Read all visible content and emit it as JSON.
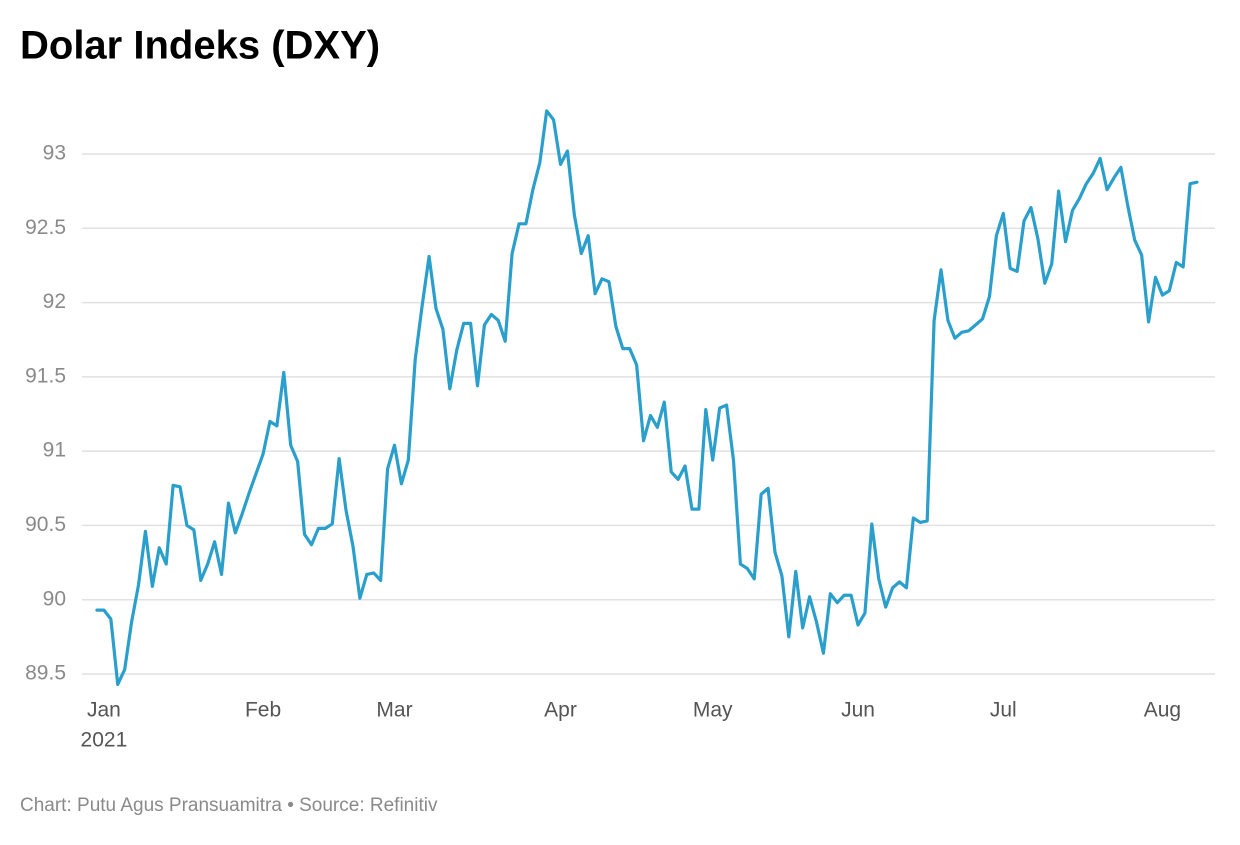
{
  "chart_data": {
    "type": "line",
    "title": "Dolar Indeks (DXY)",
    "footer": "Chart: Putu Agus Pransuamitra • Source: Refinitiv",
    "x_sublabel": "2021",
    "categories": [
      null,
      "Jan",
      null,
      null,
      null,
      null,
      null,
      null,
      null,
      null,
      null,
      null,
      null,
      null,
      null,
      null,
      null,
      null,
      null,
      null,
      null,
      null,
      null,
      null,
      "Feb",
      null,
      null,
      null,
      null,
      null,
      null,
      null,
      null,
      null,
      null,
      null,
      null,
      null,
      null,
      null,
      null,
      null,
      null,
      "Mar",
      null,
      null,
      null,
      null,
      null,
      null,
      null,
      null,
      null,
      null,
      null,
      null,
      null,
      null,
      null,
      null,
      null,
      null,
      null,
      null,
      null,
      null,
      null,
      "Apr",
      null,
      null,
      null,
      null,
      null,
      null,
      null,
      null,
      null,
      null,
      null,
      null,
      null,
      null,
      null,
      null,
      null,
      null,
      null,
      null,
      null,
      "May",
      null,
      null,
      null,
      null,
      null,
      null,
      null,
      null,
      null,
      null,
      null,
      null,
      null,
      null,
      null,
      null,
      null,
      null,
      null,
      null,
      "Jun",
      null,
      null,
      null,
      null,
      null,
      null,
      null,
      null,
      null,
      null,
      null,
      null,
      null,
      null,
      null,
      null,
      null,
      null,
      null,
      null,
      "Jul",
      null,
      null,
      null,
      null,
      null,
      null,
      null,
      null,
      null,
      null,
      null,
      null,
      null,
      null,
      null,
      null,
      null,
      null,
      null,
      null,
      null,
      null,
      "Aug",
      null,
      null,
      null,
      null,
      null
    ],
    "series": [
      {
        "name": "DXY",
        "color": "#2a9fcc",
        "values": [
          89.93,
          89.93,
          89.87,
          89.43,
          89.53,
          89.85,
          90.1,
          90.46,
          90.09,
          90.35,
          90.24,
          90.77,
          90.76,
          90.5,
          90.47,
          90.13,
          90.24,
          90.39,
          90.17,
          90.65,
          90.45,
          90.58,
          90.72,
          90.85,
          90.98,
          91.2,
          91.17,
          91.53,
          91.04,
          90.93,
          90.44,
          90.37,
          90.48,
          90.48,
          90.51,
          90.95,
          90.6,
          90.36,
          90.01,
          90.17,
          90.18,
          90.13,
          90.88,
          91.04,
          90.78,
          90.94,
          91.62,
          91.98,
          92.31,
          91.96,
          91.82,
          91.42,
          91.68,
          91.86,
          91.86,
          91.44,
          91.85,
          91.92,
          91.88,
          91.74,
          92.33,
          92.53,
          92.53,
          92.76,
          92.94,
          93.29,
          93.23,
          92.93,
          93.02,
          92.59,
          92.33,
          92.45,
          92.06,
          92.16,
          92.14,
          91.84,
          91.69,
          91.69,
          91.58,
          91.07,
          91.24,
          91.16,
          91.33,
          90.86,
          90.81,
          90.9,
          90.61,
          90.61,
          91.28,
          90.94,
          91.29,
          91.31,
          90.94,
          90.24,
          90.21,
          90.14,
          90.71,
          90.75,
          90.32,
          90.16,
          89.75,
          90.19,
          89.81,
          90.02,
          89.85,
          89.64,
          90.04,
          89.98,
          90.03,
          90.03,
          89.83,
          89.91,
          90.51,
          90.14,
          89.95,
          90.08,
          90.12,
          90.08,
          90.55,
          90.52,
          90.53,
          91.88,
          92.22,
          91.88,
          91.76,
          91.8,
          91.81,
          91.85,
          91.89,
          92.04,
          92.45,
          92.6,
          92.23,
          92.21,
          92.55,
          92.64,
          92.43,
          92.13,
          92.26,
          92.75,
          92.41,
          92.62,
          92.7,
          92.8,
          92.87,
          92.97,
          92.76,
          92.84,
          92.91,
          92.65,
          92.42,
          92.32,
          91.87,
          92.17,
          92.05,
          92.08,
          92.27,
          92.24,
          92.8,
          92.81
        ]
      }
    ],
    "ylim": [
      89.5,
      93
    ],
    "yticks": [
      89.5,
      90,
      90.5,
      91,
      91.5,
      92,
      92.5,
      93
    ],
    "grid": true
  }
}
